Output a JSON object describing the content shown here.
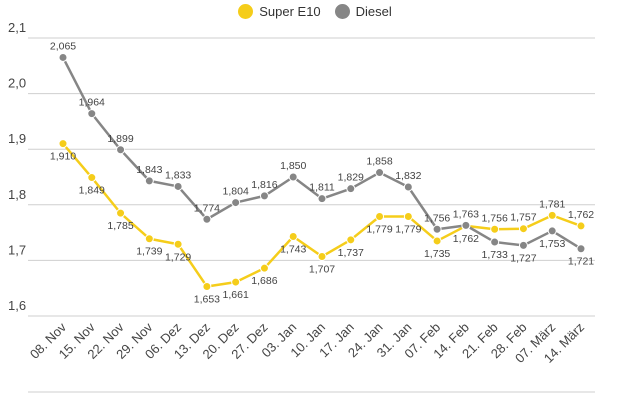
{
  "legend": {
    "items": [
      {
        "label": "Super E10",
        "color": "#f5cd1a"
      },
      {
        "label": "Diesel",
        "color": "#868686"
      }
    ]
  },
  "chart_data": {
    "type": "line",
    "categories": [
      "08. Nov",
      "15. Nov",
      "22. Nov",
      "29. Nov",
      "06. Dez",
      "13. Dez",
      "20. Dez",
      "27. Dez",
      "03. Jan",
      "10. Jan",
      "17. Jan",
      "24. Jan",
      "31. Jan",
      "07. Feb",
      "14. Feb",
      "21. Feb",
      "28. Feb",
      "07. März",
      "14. März"
    ],
    "series": [
      {
        "name": "Super E10",
        "color": "#f5cd1a",
        "values": [
          1.91,
          1.849,
          1.785,
          1.739,
          1.729,
          1.653,
          1.661,
          1.686,
          1.743,
          1.707,
          1.737,
          1.779,
          1.779,
          1.735,
          1.762,
          1.756,
          1.757,
          1.781,
          1.762
        ],
        "labels": [
          "1,910",
          "1,849",
          "1,785",
          "1,739",
          "1,729",
          "1,653",
          "1,661",
          "1,686",
          "1,743",
          "1,707",
          "1,737",
          "1,779",
          "1,779",
          "1,735",
          "1,762",
          "1,756",
          "1,757",
          "1,781",
          "1,762"
        ]
      },
      {
        "name": "Diesel",
        "color": "#868686",
        "values": [
          2.065,
          1.964,
          1.899,
          1.843,
          1.833,
          1.774,
          1.804,
          1.816,
          1.85,
          1.811,
          1.829,
          1.858,
          1.832,
          1.756,
          1.763,
          1.733,
          1.727,
          1.753,
          1.721
        ],
        "labels": [
          "2,065",
          "1,964",
          "1,899",
          "1,843",
          "1,833",
          "1,774",
          "1,804",
          "1,816",
          "1,850",
          "1,811",
          "1,829",
          "1,858",
          "1,832",
          "1,756",
          "1,763",
          "1,733",
          "1,727",
          "1,753",
          "1,721"
        ]
      }
    ],
    "y_ticks": [
      "1,6",
      "1,7",
      "1,8",
      "1,9",
      "2,0",
      "2,1"
    ],
    "y_tick_values": [
      1.6,
      1.7,
      1.8,
      1.9,
      2.0,
      2.1
    ],
    "ylim": [
      1.6,
      2.1
    ],
    "grid": "horizontal",
    "legend_position": "top-center"
  }
}
